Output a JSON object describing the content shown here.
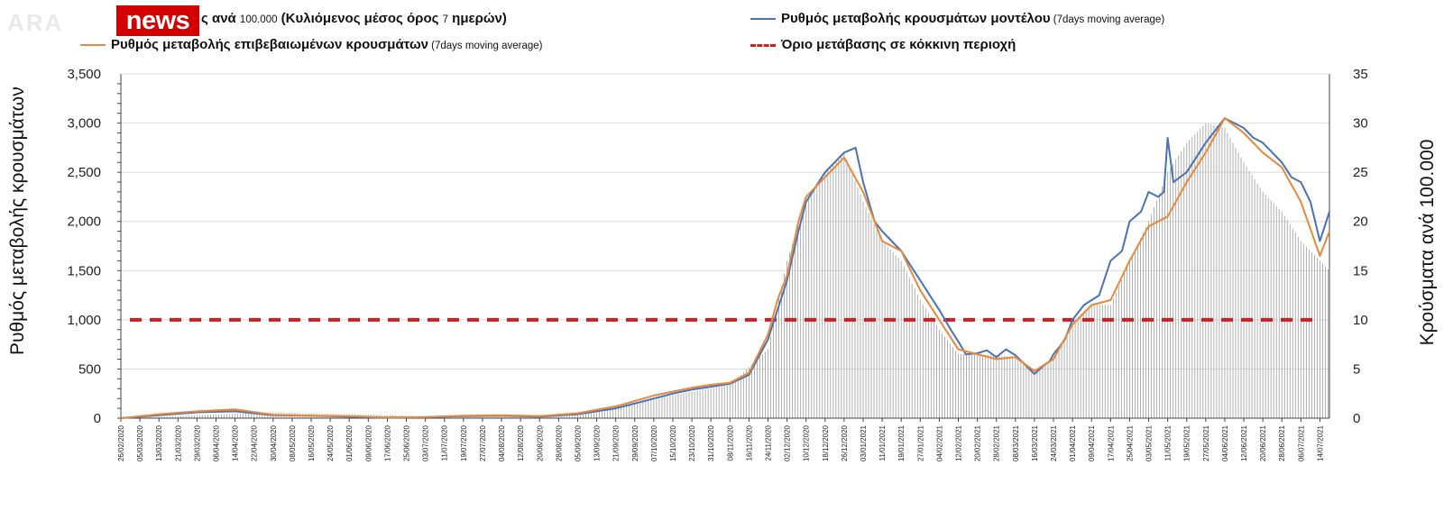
{
  "brand": {
    "ghost": "ARA",
    "name": "news"
  },
  "legend": {
    "cases_partial": {
      "label": "ς ανά ",
      "num": "100.000",
      "rest": " (Κυλιόμενος μέσος όρος ",
      "num2": "7",
      "rest2": " ημερών)"
    },
    "model": {
      "label": "Ρυθμός μεταβολής κρουσμάτων μοντέλου",
      "note": " (7days moving average)",
      "color": "#4a72b4"
    },
    "confirmed": {
      "label": "Ρυθμός μεταβολής επιβεβαιωμένων κρουσμάτων",
      "note": " (7days moving average)",
      "color": "#e8883a"
    },
    "threshold": {
      "label": "Όριο μετάβασης σε κόκκινη περιοχή",
      "color": "#cc1f1f"
    }
  },
  "chart_data": {
    "type": "line",
    "ylabel": "Ρυθμός μεταβολής κρουσμάτων",
    "ylabel_right": "Κρούσματα ανά 100.000",
    "ylim": [
      0,
      3500
    ],
    "ylim_right": [
      0,
      35
    ],
    "yticks": [
      "0",
      "500",
      "1,000",
      "1,500",
      "2,000",
      "2,500",
      "3,000",
      "3,500"
    ],
    "yticks_right": [
      "0",
      "5",
      "10",
      "15",
      "20",
      "25",
      "30",
      "35"
    ],
    "xticks": [
      "26/02/2020",
      "05/03/2020",
      "13/03/2020",
      "21/03/2020",
      "29/03/2020",
      "06/04/2020",
      "14/04/2020",
      "22/04/2020",
      "30/04/2020",
      "08/05/2020",
      "16/05/2020",
      "24/05/2020",
      "01/06/2020",
      "09/06/2020",
      "17/06/2020",
      "25/06/2020",
      "03/07/2020",
      "11/07/2020",
      "19/07/2020",
      "27/07/2020",
      "04/08/2020",
      "12/08/2020",
      "20/08/2020",
      "28/08/2020",
      "05/09/2020",
      "13/09/2020",
      "21/09/2020",
      "29/09/2020",
      "07/10/2020",
      "15/10/2020",
      "23/10/2020",
      "31/10/2020",
      "08/11/2020",
      "16/11/2020",
      "24/11/2020",
      "02/12/2020",
      "10/12/2020",
      "18/12/2020",
      "26/12/2020",
      "03/01/2021",
      "11/01/2021",
      "19/01/2021",
      "27/01/2021",
      "04/02/2021",
      "12/02/2021",
      "20/02/2021",
      "28/02/2021",
      "08/03/2021",
      "16/03/2021",
      "24/03/2021",
      "01/04/2021",
      "09/04/2021",
      "17/04/2021",
      "25/04/2021",
      "03/05/2021",
      "11/05/2021",
      "19/05/2021",
      "27/05/2021",
      "04/06/2021",
      "12/06/2021",
      "20/06/2021",
      "28/06/2021",
      "06/07/2021",
      "14/07/2021"
    ],
    "threshold": 1000,
    "series": [
      {
        "name": "Ρυθμός μεταβολής κρουσμάτων μοντέλου",
        "kind": "line",
        "color": "#4a72b4",
        "x": [
          0,
          2,
          4,
          6,
          8,
          10,
          12,
          14,
          16,
          18,
          20,
          22,
          24,
          26,
          28,
          29,
          30,
          31,
          32,
          33,
          34,
          34.5,
          35,
          35.6,
          36,
          37,
          38,
          38.6,
          39,
          39.3,
          39.6,
          40,
          40.5,
          41,
          42,
          43,
          43.6,
          44,
          44.4,
          45,
          45.5,
          46,
          46.5,
          47,
          48,
          48.4,
          48.8,
          49,
          49.3,
          49.6,
          50,
          50.6,
          51,
          51.4,
          52,
          52.6,
          53,
          53.6,
          54,
          54.5,
          54.8,
          55,
          55.3,
          56,
          57,
          58,
          59,
          59.5,
          60,
          60.5,
          61,
          61.5,
          62,
          62.5,
          63,
          63.5
        ],
        "y": [
          0,
          30,
          60,
          70,
          30,
          25,
          15,
          5,
          10,
          20,
          25,
          15,
          40,
          100,
          200,
          250,
          290,
          320,
          350,
          440,
          800,
          1100,
          1400,
          1900,
          2200,
          2500,
          2700,
          2750,
          2400,
          2200,
          2000,
          1900,
          1800,
          1700,
          1400,
          1100,
          900,
          780,
          650,
          660,
          690,
          620,
          700,
          640,
          450,
          520,
          580,
          650,
          720,
          800,
          1000,
          1150,
          1200,
          1250,
          1600,
          1700,
          2000,
          2100,
          2300,
          2250,
          2300,
          2850,
          2400,
          2500,
          2800,
          3050,
          2950,
          2850,
          2800,
          2700,
          2600,
          2450,
          2400,
          2200,
          1800,
          2100
        ],
        "extra": [
          [
            55.6,
            2200
          ],
          [
            56,
            2550
          ]
        ]
      },
      {
        "name": "Ρυθμός μεταβολής επιβεβαιωμένων κρουσμάτων",
        "kind": "line",
        "color": "#e8883a",
        "x": [
          0,
          2,
          4,
          6,
          8,
          10,
          12,
          14,
          16,
          18,
          20,
          22,
          24,
          26,
          28,
          29,
          30,
          31,
          32,
          33,
          34,
          34.5,
          35,
          35.6,
          36,
          37,
          38,
          39,
          40,
          41,
          42,
          43,
          44,
          45,
          46,
          47,
          48,
          49,
          50,
          51,
          52,
          53,
          54,
          55,
          56,
          57,
          58,
          59,
          60,
          61,
          62,
          63,
          63.5
        ],
        "y": [
          0,
          40,
          70,
          90,
          35,
          25,
          20,
          8,
          12,
          25,
          30,
          20,
          50,
          120,
          230,
          270,
          310,
          340,
          360,
          460,
          850,
          1200,
          1450,
          2000,
          2250,
          2450,
          2650,
          2300,
          1800,
          1700,
          1300,
          1000,
          700,
          650,
          600,
          620,
          480,
          600,
          950,
          1150,
          1200,
          1600,
          1950,
          2050,
          2400,
          2700,
          3050,
          2900,
          2700,
          2550,
          2200,
          1650,
          1900
        ]
      },
      {
        "name": "Κρούσματα ανά 100.000 (Κυλιόμενος μέσος όρος 7 ημερών)",
        "kind": "bar",
        "axis": "right",
        "x": [
          0,
          8,
          16,
          24,
          28,
          32,
          34,
          35,
          36,
          37,
          38,
          39,
          40,
          41,
          42,
          43,
          44,
          45,
          46,
          47,
          48,
          49,
          50,
          51,
          52,
          53,
          54,
          55,
          56,
          57,
          58,
          59,
          60,
          61,
          62,
          63,
          64
        ],
        "y": [
          0,
          0.6,
          0.2,
          0.4,
          2,
          3.4,
          7,
          16,
          22,
          25,
          27,
          22,
          18,
          16,
          12,
          9,
          6.5,
          6.5,
          6.4,
          6.2,
          4.6,
          6,
          9.8,
          11.6,
          11.5,
          16,
          20,
          25,
          28,
          30,
          29.5,
          26,
          23,
          21,
          18,
          16,
          14
        ]
      }
    ]
  }
}
